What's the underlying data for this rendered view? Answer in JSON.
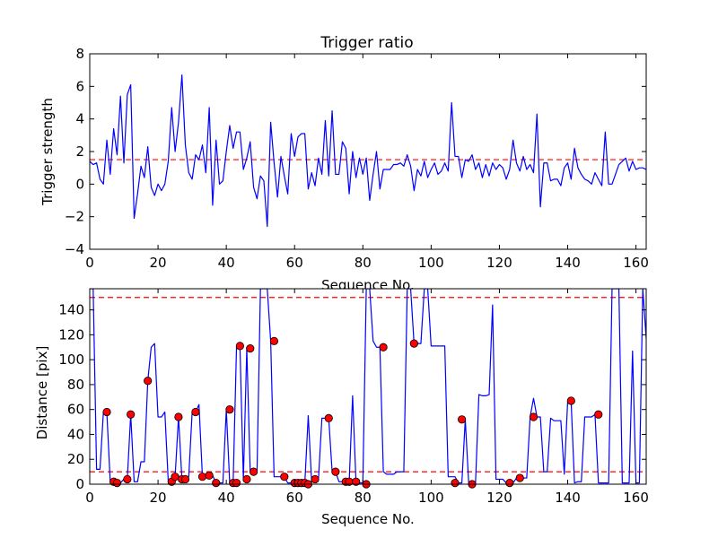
{
  "chart_data": [
    {
      "type": "line",
      "title": "Trigger ratio",
      "xlabel": "Sequence No.",
      "ylabel": "Trigger strength",
      "xlim": [
        0,
        163
      ],
      "ylim": [
        -4,
        8
      ],
      "xticks": [
        "0",
        "20",
        "40",
        "60",
        "80",
        "100",
        "120",
        "140",
        "160"
      ],
      "yticks": [
        "−4",
        "−2",
        "0",
        "2",
        "4",
        "6",
        "8"
      ],
      "grid": false,
      "threshold": 1.5,
      "line_color": "#0000ff",
      "threshold_color": "#ff0000",
      "series": [
        {
          "values": [
            1.4,
            1.2,
            1.3,
            0.3,
            0.0,
            2.7,
            0.6,
            3.4,
            1.8,
            5.4,
            1.3,
            5.5,
            6.1,
            -2.1,
            -0.6,
            1.1,
            0.4,
            2.3,
            -0.2,
            -0.7,
            0.0,
            -0.4,
            0.0,
            1.4,
            4.7,
            2.0,
            3.8,
            6.7,
            2.4,
            0.7,
            0.3,
            1.8,
            1.5,
            2.4,
            0.7,
            4.7,
            -1.3,
            2.7,
            0.0,
            0.2,
            2.0,
            3.6,
            2.2,
            3.2,
            3.2,
            0.9,
            1.6,
            2.6,
            -0.2,
            -0.9,
            0.5,
            0.2,
            -2.6,
            3.8,
            1.3,
            -0.8,
            1.7,
            0.5,
            -0.6,
            3.1,
            1.7,
            2.9,
            3.1,
            3.1,
            -0.3,
            0.7,
            -0.1,
            1.6,
            0.6,
            3.9,
            0.5,
            4.5,
            0.6,
            0.6,
            2.6,
            2.2,
            -0.6,
            2.0,
            0.4,
            1.6,
            0.6,
            1.6,
            -1.0,
            0.6,
            2.0,
            -0.3,
            0.9,
            0.9,
            0.9,
            1.2,
            1.2,
            1.3,
            1.1,
            1.8,
            1.1,
            -0.4,
            0.9,
            0.5,
            1.4,
            0.4,
            0.9,
            1.3,
            0.6,
            0.8,
            1.3,
            0.8,
            5.0,
            1.7,
            1.7,
            0.4,
            1.5,
            1.4,
            1.8,
            0.9,
            1.3,
            0.4,
            1.2,
            0.5,
            1.3,
            0.9,
            1.2,
            1.0,
            0.3,
            0.9,
            2.7,
            1.3,
            0.8,
            1.7,
            0.9,
            1.2,
            0.7,
            4.3,
            -1.4,
            1.3,
            1.3,
            0.2,
            0.3,
            0.3,
            -0.1,
            1.0,
            1.3,
            0.3,
            2.2,
            1.0,
            0.6,
            0.3,
            0.2,
            0.0,
            0.7,
            0.3,
            -0.1,
            3.2,
            0.0,
            0.0,
            0.6,
            1.2,
            1.4,
            1.6,
            0.8,
            1.4,
            0.9,
            1.0,
            1.0,
            0.9,
            1.4
          ]
        }
      ]
    },
    {
      "type": "line",
      "title": "",
      "xlabel": "Sequence No.",
      "ylabel": "Distance [pix]",
      "xlim": [
        0,
        163
      ],
      "ylim": [
        0,
        157
      ],
      "xticks": [
        "0",
        "20",
        "40",
        "60",
        "80",
        "100",
        "120",
        "140",
        "160"
      ],
      "yticks": [
        "0",
        "20",
        "40",
        "60",
        "80",
        "100",
        "120",
        "140"
      ],
      "grid": false,
      "thresholds": [
        10,
        150
      ],
      "line_color": "#0000ff",
      "threshold_color": "#ff0000",
      "marker_color": "#ff0000",
      "series": [
        {
          "values": [
            157,
            157,
            12,
            12,
            58,
            58,
            2,
            1,
            1,
            1,
            4,
            4,
            56,
            2,
            2,
            18,
            18,
            83,
            110,
            113,
            54,
            54,
            58,
            2,
            2,
            6,
            54,
            4,
            4,
            6,
            58,
            58,
            64,
            6,
            6,
            7,
            7,
            1,
            1,
            1,
            60,
            1,
            1,
            111,
            111,
            4,
            109,
            10,
            10,
            10,
            157,
            157,
            157,
            115,
            6,
            6,
            6,
            6,
            1,
            1,
            1,
            1,
            1,
            1,
            55,
            2,
            4,
            4,
            53,
            53,
            53,
            10,
            10,
            2,
            2,
            2,
            2,
            71,
            1,
            1,
            1,
            157,
            157,
            115,
            110,
            110,
            10,
            8,
            8,
            8,
            10,
            10,
            10,
            157,
            157,
            113,
            113,
            113,
            157,
            157,
            111,
            111,
            111,
            111,
            111,
            6,
            6,
            6,
            1,
            1,
            52,
            1,
            1,
            1,
            72,
            71,
            71,
            72,
            144,
            4,
            4,
            4,
            1,
            1,
            1,
            5,
            5,
            5,
            5,
            54,
            69,
            54,
            54,
            10,
            10,
            53,
            51,
            51,
            51,
            8,
            67,
            67,
            1,
            2,
            2,
            54,
            54,
            54,
            56,
            1,
            1,
            1,
            1,
            157,
            157,
            157,
            1,
            1,
            1,
            107,
            1,
            1,
            157,
            117,
            117
          ]
        }
      ],
      "markers": {
        "x": [
          5,
          7,
          8,
          11,
          12,
          17,
          24,
          25,
          26,
          27,
          28,
          31,
          33,
          35,
          37,
          41,
          42,
          43,
          44,
          46,
          47,
          48,
          54,
          57,
          60,
          61,
          62,
          63,
          64,
          66,
          70,
          72,
          75,
          76,
          78,
          81,
          86,
          95,
          107,
          109,
          112,
          123,
          126,
          130,
          141,
          149
        ],
        "y": [
          58,
          2,
          1,
          4,
          56,
          83,
          2,
          6,
          54,
          4,
          4,
          58,
          6,
          7,
          1,
          60,
          1,
          1,
          111,
          4,
          109,
          10,
          115,
          6,
          1,
          1,
          1,
          1,
          0,
          4,
          53,
          10,
          2,
          2,
          2,
          0,
          110,
          113,
          1,
          52,
          0,
          1,
          5,
          54,
          67,
          56
        ]
      }
    }
  ]
}
